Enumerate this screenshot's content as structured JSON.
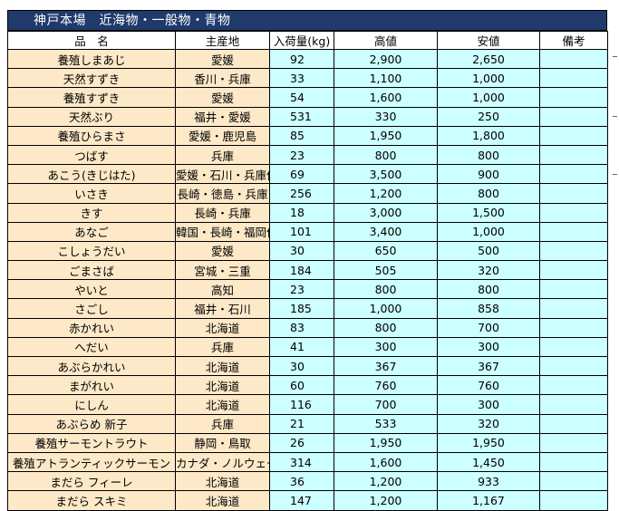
{
  "title": "神戸本場　近海物・一般物・青物",
  "columns": {
    "name": "品　名",
    "origin": "主産地",
    "qty": "入荷量(kg)",
    "high": "高値",
    "low": "安値",
    "note": "備考"
  },
  "rows": [
    {
      "name": "養殖しまあじ",
      "origin": "愛媛",
      "qty": "92",
      "high": "2,900",
      "low": "2,650",
      "note": ""
    },
    {
      "name": "天然すずき",
      "origin": "香川・兵庫",
      "qty": "33",
      "high": "1,100",
      "low": "1,000",
      "note": ""
    },
    {
      "name": "養殖すずき",
      "origin": "愛媛",
      "qty": "54",
      "high": "1,600",
      "low": "1,000",
      "note": ""
    },
    {
      "name": "天然ぶり",
      "origin": "福井・愛媛",
      "qty": "531",
      "high": "330",
      "low": "250",
      "note": ""
    },
    {
      "name": "養殖ひらまさ",
      "origin": "愛媛・鹿児島",
      "qty": "85",
      "high": "1,950",
      "low": "1,800",
      "note": ""
    },
    {
      "name": "つばす",
      "origin": "兵庫",
      "qty": "23",
      "high": "800",
      "low": "800",
      "note": ""
    },
    {
      "name": "あこう(きじはた)",
      "origin": "愛媛・石川・兵庫他",
      "qty": "69",
      "high": "3,500",
      "low": "900",
      "note": ""
    },
    {
      "name": "いさき",
      "origin": "長崎・徳島・兵庫",
      "qty": "256",
      "high": "1,200",
      "low": "800",
      "note": ""
    },
    {
      "name": "きす",
      "origin": "長崎・兵庫",
      "qty": "18",
      "high": "3,000",
      "low": "1,500",
      "note": ""
    },
    {
      "name": "あなご",
      "origin": "韓国・長崎・福岡他",
      "qty": "101",
      "high": "3,400",
      "low": "1,000",
      "note": ""
    },
    {
      "name": "こしょうだい",
      "origin": "愛媛",
      "qty": "30",
      "high": "650",
      "low": "500",
      "note": ""
    },
    {
      "name": "ごまさば",
      "origin": "宮城・三重",
      "qty": "184",
      "high": "505",
      "low": "320",
      "note": ""
    },
    {
      "name": "やいと",
      "origin": "高知",
      "qty": "23",
      "high": "800",
      "low": "800",
      "note": ""
    },
    {
      "name": "さごし",
      "origin": "福井・石川",
      "qty": "185",
      "high": "1,000",
      "low": "858",
      "note": ""
    },
    {
      "name": "赤かれい",
      "origin": "北海道",
      "qty": "83",
      "high": "800",
      "low": "700",
      "note": ""
    },
    {
      "name": "へだい",
      "origin": "兵庫",
      "qty": "41",
      "high": "300",
      "low": "300",
      "note": ""
    },
    {
      "name": "あぶらかれい",
      "origin": "北海道",
      "qty": "30",
      "high": "367",
      "low": "367",
      "note": ""
    },
    {
      "name": "まがれい",
      "origin": "北海道",
      "qty": "60",
      "high": "760",
      "low": "760",
      "note": ""
    },
    {
      "name": "にしん",
      "origin": "北海道",
      "qty": "116",
      "high": "700",
      "low": "300",
      "note": ""
    },
    {
      "name": "あぶらめ 新子",
      "origin": "兵庫",
      "qty": "21",
      "high": "533",
      "low": "320",
      "note": ""
    },
    {
      "name": "養殖サーモントラウト",
      "origin": "静岡・鳥取",
      "qty": "26",
      "high": "1,950",
      "low": "1,950",
      "note": ""
    },
    {
      "name": "養殖アトランティックサーモン",
      "origin": "カナダ・ノルウェー",
      "qty": "314",
      "high": "1,600",
      "low": "1,450",
      "note": ""
    },
    {
      "name": "まだら フィーレ",
      "origin": "北海道",
      "qty": "36",
      "high": "1,200",
      "low": "933",
      "note": ""
    },
    {
      "name": "まだら スキミ",
      "origin": "北海道",
      "qty": "147",
      "high": "1,200",
      "low": "1,167",
      "note": ""
    }
  ]
}
